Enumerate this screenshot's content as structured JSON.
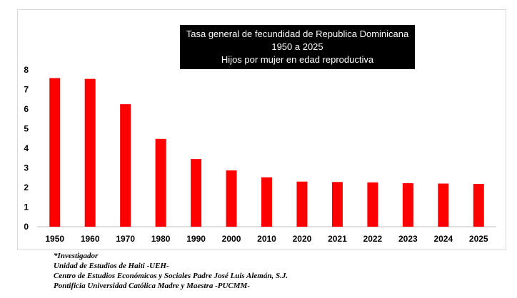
{
  "chart_data": {
    "type": "bar",
    "title_lines": [
      "Tasa general de fecundidad de Republica Dominicana",
      "1950 a 2025",
      "Hijos por mujer en edad reproductiva"
    ],
    "categories": [
      "1950",
      "1960",
      "1970",
      "1980",
      "1990",
      "2000",
      "2010",
      "2020",
      "2021",
      "2022",
      "2023",
      "2024",
      "2025"
    ],
    "values": [
      7.58,
      7.54,
      6.25,
      4.48,
      3.45,
      2.87,
      2.52,
      2.3,
      2.28,
      2.26,
      2.22,
      2.2,
      2.18
    ],
    "ylim": [
      0,
      8
    ],
    "yticks": [
      0,
      1,
      2,
      3,
      4,
      5,
      6,
      7,
      8
    ],
    "grid": false,
    "bar_color": "#ff0000"
  },
  "footer": {
    "line1": "*Investigador",
    "line2": "Unidad de Estudios de Haiti -UEH-",
    "line3": "Centro de Estudios Económicos y Sociales Padre José Luis Alemán, S.J.",
    "line4": "Pontificia Universidad Católica Madre y Maestra -PUCMM-"
  }
}
